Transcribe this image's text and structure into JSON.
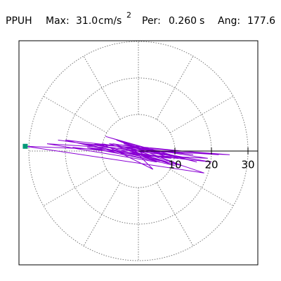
{
  "chart_data": {
    "type": "polar-trace",
    "station": "PPUH",
    "max_label": "Max:",
    "max": {
      "value": 31.0,
      "label": "31.0"
    },
    "max_unit": "cm/s",
    "max_unit_exp": "2",
    "period_label": "Per:",
    "period": {
      "value": 0.26,
      "label": "0.260"
    },
    "period_unit": "s",
    "angle_label": "Ang:",
    "angle": 177.6,
    "rlim": [
      0,
      30
    ],
    "rticks": [
      10,
      20,
      30
    ],
    "theta_grid": 30,
    "series": [
      {
        "color": "#8a00d4",
        "x": [
          0,
          3,
          -5,
          8,
          -12,
          15,
          -20,
          10,
          -8,
          22,
          -25,
          5,
          -3,
          18,
          -30.9,
          25,
          -15,
          12,
          -6,
          9,
          -18,
          20,
          -10,
          4,
          -2,
          14,
          -22,
          7,
          -4,
          16,
          -9,
          11,
          -14,
          6,
          -1,
          19,
          -7,
          3,
          0
        ],
        "y": [
          0,
          -2,
          1,
          -3,
          2,
          -1,
          3,
          -4,
          2,
          -1,
          2,
          -3,
          1,
          -6,
          1.3,
          -1,
          2,
          -4,
          3,
          -2,
          1,
          -3,
          2,
          -5,
          1,
          -2,
          3,
          -1,
          2,
          -3,
          4,
          -2,
          1,
          -3,
          -1,
          -2,
          2,
          -1,
          0
        ]
      }
    ],
    "marker_color": "#009977"
  }
}
